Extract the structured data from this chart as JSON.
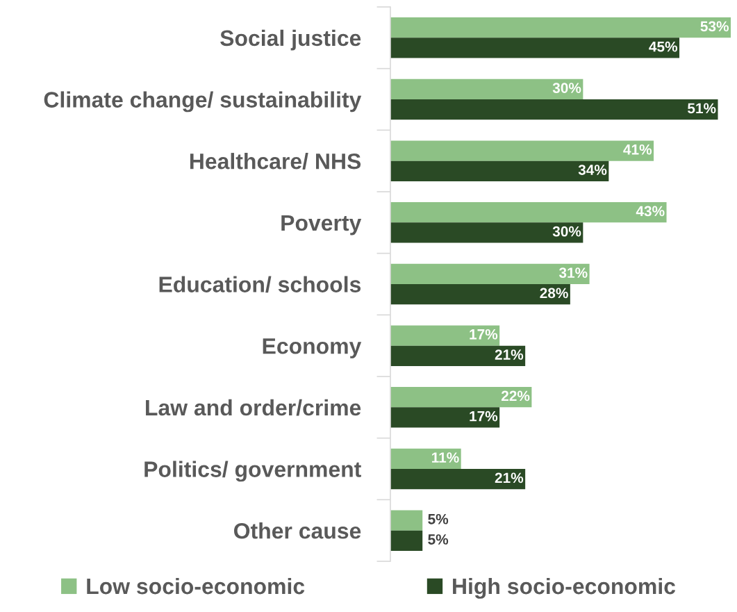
{
  "chart_data": {
    "type": "bar",
    "orientation": "horizontal",
    "legend": "bottom",
    "categories": [
      "Social justice",
      "Climate change/ sustainability",
      "Healthcare/ NHS",
      "Poverty",
      "Education/ schools",
      "Economy",
      "Law and order/crime",
      "Politics/ government",
      "Other cause"
    ],
    "series": [
      {
        "name": "Low socio-economic",
        "color": "#8dc185",
        "values": [
          53,
          30,
          41,
          43,
          31,
          17,
          22,
          11,
          5
        ],
        "value_labels": [
          "53%",
          "30%",
          "41%",
          "43%",
          "31%",
          "17%",
          "22%",
          "11%",
          "5%"
        ]
      },
      {
        "name": "High socio-economic",
        "color": "#2a4a25",
        "values": [
          45,
          51,
          34,
          30,
          28,
          21,
          17,
          21,
          5
        ],
        "value_labels": [
          "45%",
          "51%",
          "34%",
          "30%",
          "28%",
          "21%",
          "17%",
          "21%",
          "5%"
        ]
      }
    ]
  }
}
